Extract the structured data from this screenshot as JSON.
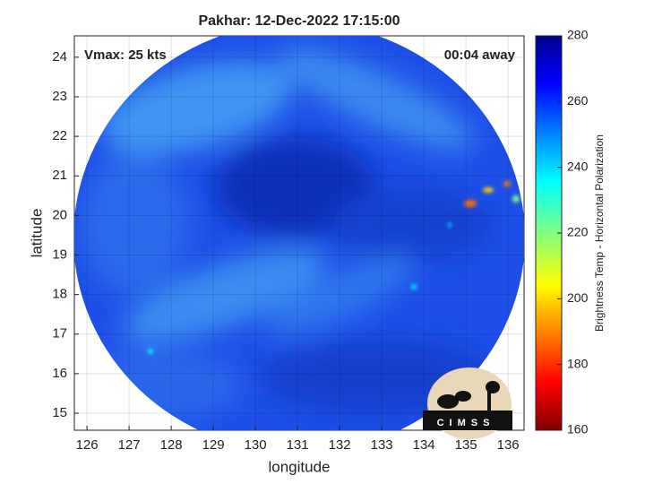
{
  "chart_data": {
    "type": "map",
    "title": "Pakhar: 12-Dec-2022 17:15:00",
    "annotations": [
      "Vmax: 25 kts",
      "00:04 away"
    ],
    "xlabel": "longitude",
    "ylabel": "latitude",
    "xlim": [
      125.7,
      136.38
    ],
    "xticks": [
      126,
      127,
      128,
      129,
      130,
      131,
      132,
      133,
      134,
      135,
      136
    ],
    "ylim": [
      14.57,
      24.54
    ],
    "yticks": [
      15,
      16,
      17,
      18,
      19,
      20,
      21,
      22,
      23,
      24
    ],
    "grid": true,
    "colorbar": {
      "label": "Brightness Temp - Horizontal Polarization",
      "lim": [
        160,
        280
      ],
      "ticks": [
        160,
        180,
        200,
        220,
        240,
        260,
        280
      ]
    },
    "logo": "CIMSS"
  }
}
